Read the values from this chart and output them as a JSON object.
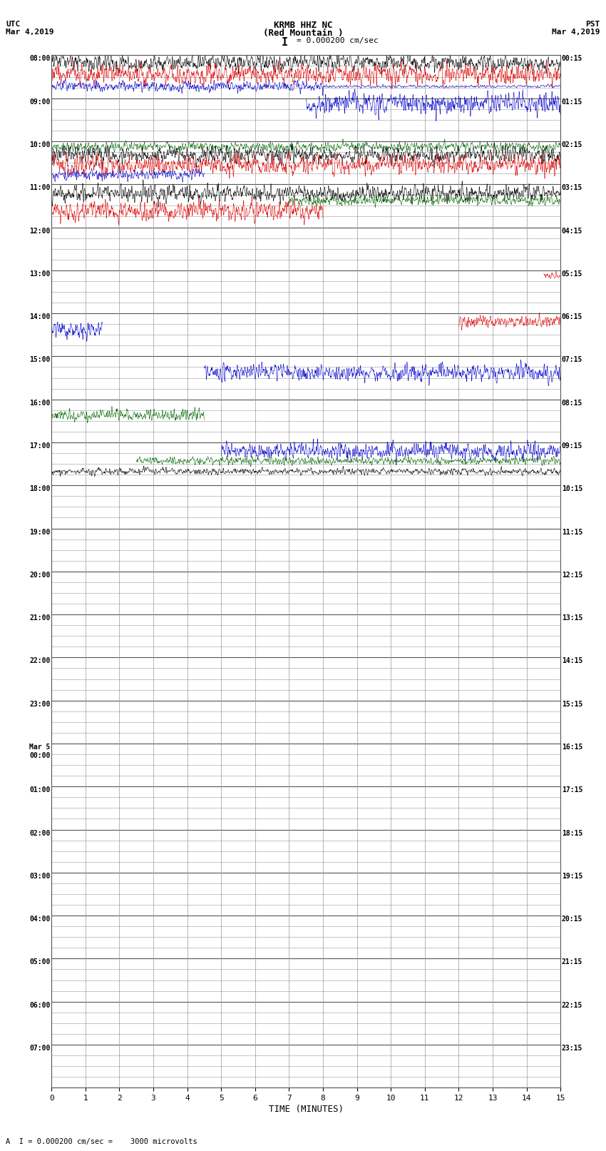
{
  "title_center": "KRMB HHZ NC\n(Red Mountain )",
  "title_left": "UTC\nMar 4,2019",
  "title_right": "PST\nMar 4,2019",
  "scale_label": "I = 0.000200 cm/sec",
  "bottom_label": "A  I = 0.000200 cm/sec =    3000 microvolts",
  "xlabel": "TIME (MINUTES)",
  "xticks": [
    0,
    1,
    2,
    3,
    4,
    5,
    6,
    7,
    8,
    9,
    10,
    11,
    12,
    13,
    14,
    15
  ],
  "xmin": 0,
  "xmax": 15,
  "left_times": [
    "08:00",
    "09:00",
    "10:00",
    "11:00",
    "12:00",
    "13:00",
    "14:00",
    "15:00",
    "16:00",
    "17:00",
    "18:00",
    "19:00",
    "20:00",
    "21:00",
    "22:00",
    "23:00",
    "Mar 5\n00:00",
    "01:00",
    "02:00",
    "03:00",
    "04:00",
    "05:00",
    "06:00",
    "07:00"
  ],
  "right_times": [
    "00:15",
    "01:15",
    "02:15",
    "03:15",
    "04:15",
    "05:15",
    "06:15",
    "07:15",
    "08:15",
    "09:15",
    "10:15",
    "11:15",
    "12:15",
    "13:15",
    "14:15",
    "15:15",
    "16:15",
    "17:15",
    "18:15",
    "19:15",
    "20:15",
    "21:15",
    "22:15",
    "23:15"
  ],
  "num_hours": 24,
  "subrows": 4,
  "bg_color": "#ffffff",
  "grid_color": "#999999",
  "trace_colors": {
    "black": "#000000",
    "red": "#dd0000",
    "blue": "#0000cc",
    "green": "#006600"
  }
}
